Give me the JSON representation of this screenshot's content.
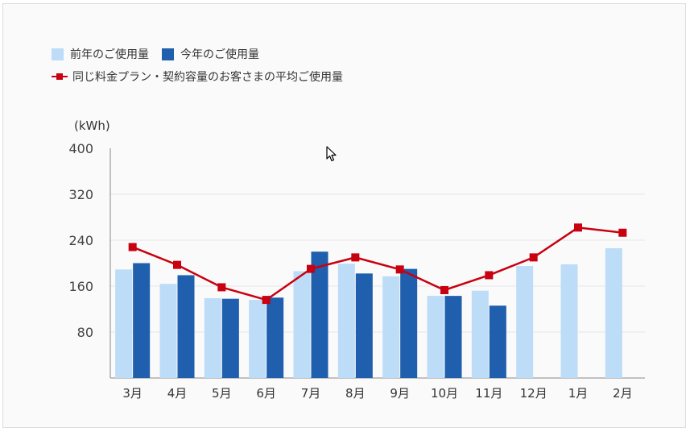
{
  "chart_data": {
    "type": "bar",
    "categories": [
      "3月",
      "4月",
      "5月",
      "6月",
      "7月",
      "8月",
      "9月",
      "10月",
      "11月",
      "12月",
      "1月",
      "2月"
    ],
    "series": [
      {
        "name": "前年のご使用量",
        "kind": "bar",
        "color": "#bddcf8",
        "values": [
          189,
          164,
          139,
          136,
          186,
          199,
          177,
          143,
          152,
          195,
          198,
          226
        ]
      },
      {
        "name": "今年のご使用量",
        "kind": "bar",
        "color": "#1f5fad",
        "values": [
          200,
          179,
          138,
          140,
          220,
          182,
          190,
          143,
          126,
          null,
          null,
          null
        ]
      },
      {
        "name": "同じ料金プラン・契約容量のお客さまの平均ご使用量",
        "kind": "line",
        "color": "#c8000f",
        "values": [
          228,
          197,
          158,
          136,
          190,
          210,
          189,
          153,
          179,
          210,
          262,
          253
        ]
      }
    ],
    "ylabel": "(kWh)",
    "ylim": [
      0,
      400
    ],
    "yticks": [
      80,
      160,
      240,
      320,
      400
    ],
    "grid": true,
    "legend_position": "top-left"
  }
}
